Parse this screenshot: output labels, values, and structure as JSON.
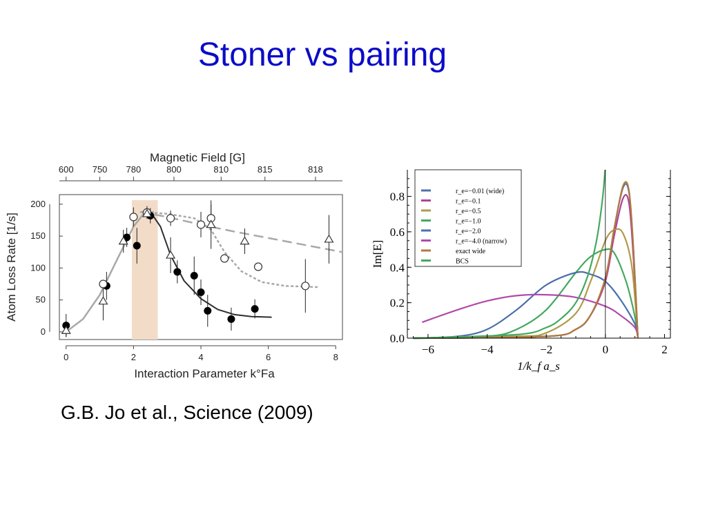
{
  "slide": {
    "title": "Stoner vs pairing",
    "citation": "G.B. Jo et al., Science (2009)"
  },
  "chart_data": [
    {
      "type": "scatter",
      "top_axis_label": "Magnetic Field [G]",
      "top_ticks": [
        {
          "label": "600",
          "x": 0
        },
        {
          "label": "750",
          "x": 1
        },
        {
          "label": "780",
          "x": 2
        },
        {
          "label": "800",
          "x": 3.2
        },
        {
          "label": "810",
          "x": 4.6
        },
        {
          "label": "815",
          "x": 5.9
        },
        {
          "label": "818",
          "x": 7.4
        }
      ],
      "xlabel": "Interaction Parameter k°Fa",
      "ylabel": "Atom Loss Rate [1/s]",
      "xlim": [
        -0.2,
        8.2
      ],
      "ylim": [
        -12,
        215
      ],
      "xticks": [
        0,
        2,
        4,
        6,
        8
      ],
      "yticks": [
        0,
        50,
        100,
        150,
        200
      ],
      "highlight_band": [
        1.95,
        2.72
      ],
      "series": [
        {
          "marker": "filled-circle",
          "points": [
            {
              "x": 0.0,
              "y": 10,
              "err": 18
            },
            {
              "x": 1.2,
              "y": 72,
              "err": 22
            },
            {
              "x": 1.8,
              "y": 148,
              "err": 15
            },
            {
              "x": 2.1,
              "y": 135,
              "err": 28
            },
            {
              "x": 2.5,
              "y": 182,
              "err": 12
            },
            {
              "x": 3.3,
              "y": 94,
              "err": 18
            },
            {
              "x": 3.8,
              "y": 88,
              "err": 30
            },
            {
              "x": 4.0,
              "y": 62,
              "err": 20
            },
            {
              "x": 4.2,
              "y": 33,
              "err": 25
            },
            {
              "x": 4.9,
              "y": 20,
              "err": 18
            },
            {
              "x": 5.6,
              "y": 36,
              "err": 15
            }
          ]
        },
        {
          "marker": "open-circle",
          "points": [
            {
              "x": 1.1,
              "y": 75,
              "err": 0
            },
            {
              "x": 2.0,
              "y": 180,
              "err": 15
            },
            {
              "x": 2.4,
              "y": 187,
              "err": 10
            },
            {
              "x": 3.1,
              "y": 178,
              "err": 12
            },
            {
              "x": 4.0,
              "y": 168,
              "err": 20
            },
            {
              "x": 4.3,
              "y": 178,
              "err": 22
            },
            {
              "x": 4.7,
              "y": 115,
              "err": 0
            },
            {
              "x": 5.7,
              "y": 102,
              "err": 0
            },
            {
              "x": 7.1,
              "y": 72,
              "err": 42
            }
          ]
        },
        {
          "marker": "open-triangle",
          "points": [
            {
              "x": 0.0,
              "y": 2,
              "err": 10
            },
            {
              "x": 1.1,
              "y": 48,
              "err": 30
            },
            {
              "x": 1.7,
              "y": 142,
              "err": 18
            },
            {
              "x": 2.4,
              "y": 185,
              "err": 8
            },
            {
              "x": 3.1,
              "y": 120,
              "err": 28
            },
            {
              "x": 4.3,
              "y": 168,
              "err": 38
            },
            {
              "x": 5.3,
              "y": 142,
              "err": 20
            },
            {
              "x": 7.8,
              "y": 145,
              "err": 38
            }
          ]
        }
      ],
      "curves": [
        {
          "style": "solid-light",
          "color": "#a8a8a8",
          "points": [
            [
              0,
              0
            ],
            [
              0.5,
              20
            ],
            [
              1,
              58
            ],
            [
              1.5,
              112
            ],
            [
              2,
              165
            ],
            [
              2.3,
              185
            ],
            [
              2.6,
              188
            ]
          ]
        },
        {
          "style": "solid-dark",
          "color": "#2e2e2e",
          "points": [
            [
              2.5,
              188
            ],
            [
              2.8,
              165
            ],
            [
              3.1,
              120
            ],
            [
              3.5,
              80
            ],
            [
              4,
              52
            ],
            [
              4.5,
              35
            ],
            [
              5,
              27
            ],
            [
              5.5,
              24
            ],
            [
              6.1,
              23
            ]
          ]
        },
        {
          "style": "dashed-long",
          "color": "#a8a8a8",
          "points": [
            [
              2.2,
              188
            ],
            [
              3,
              180
            ],
            [
              4,
              168
            ],
            [
              5,
              157
            ],
            [
              6,
              147
            ],
            [
              7,
              137
            ],
            [
              8.2,
              125
            ]
          ]
        },
        {
          "style": "dotted",
          "color": "#a8a8a8",
          "points": [
            [
              2.2,
              188
            ],
            [
              3,
              185
            ],
            [
              3.8,
              178
            ],
            [
              4.3,
              160
            ],
            [
              4.7,
              125
            ],
            [
              5.2,
              95
            ],
            [
              5.8,
              78
            ],
            [
              6.5,
              72
            ],
            [
              7.5,
              70
            ]
          ]
        }
      ]
    },
    {
      "type": "line",
      "xlabel": "1/k_f a_s",
      "ylabel": "Im[E]",
      "xlim": [
        -6.7,
        2.2
      ],
      "ylim": [
        0,
        0.95
      ],
      "xticks": [
        -6,
        -4,
        -2,
        0,
        2
      ],
      "yticks": [
        0.0,
        0.2,
        0.4,
        0.6,
        0.8
      ],
      "ytick_labels": [
        "0.0",
        "0.2",
        "0.4",
        "0.6",
        "0.8"
      ],
      "xtick_labels": [
        "−6",
        "−4",
        "−2",
        "0",
        "2"
      ],
      "legend_position": "top-left",
      "series": [
        {
          "name": "r_e=−0.01 (wide)",
          "color": "#4a6fad",
          "points": [
            [
              -6.5,
              0
            ],
            [
              -2,
              0.01
            ],
            [
              -1,
              0.05
            ],
            [
              -0.5,
              0.13
            ],
            [
              0,
              0.33
            ],
            [
              0.3,
              0.62
            ],
            [
              0.6,
              0.85
            ],
            [
              0.8,
              0.82
            ],
            [
              0.95,
              0.5
            ],
            [
              1.1,
              0
            ]
          ]
        },
        {
          "name": "r_e=−0.1",
          "color": "#b0409a",
          "points": [
            [
              -6.5,
              0
            ],
            [
              -2,
              0.01
            ],
            [
              -1,
              0.05
            ],
            [
              -0.5,
              0.13
            ],
            [
              0,
              0.32
            ],
            [
              0.3,
              0.58
            ],
            [
              0.6,
              0.79
            ],
            [
              0.8,
              0.76
            ],
            [
              0.95,
              0.45
            ],
            [
              1.1,
              0
            ]
          ]
        },
        {
          "name": "r_e=−0.5",
          "color": "#b09a4a",
          "points": [
            [
              -6.5,
              0
            ],
            [
              -3,
              0.01
            ],
            [
              -2,
              0.03
            ],
            [
              -1,
              0.14
            ],
            [
              -0.5,
              0.32
            ],
            [
              0,
              0.55
            ],
            [
              0.3,
              0.61
            ],
            [
              0.6,
              0.59
            ],
            [
              0.9,
              0.4
            ],
            [
              1.1,
              0
            ]
          ]
        },
        {
          "name": "r_e=−1.0",
          "color": "#44a860",
          "points": [
            [
              -6.5,
              0
            ],
            [
              -4,
              0.01
            ],
            [
              -3,
              0.05
            ],
            [
              -2,
              0.16
            ],
            [
              -1,
              0.37
            ],
            [
              -0.5,
              0.46
            ],
            [
              0,
              0.5
            ],
            [
              0.3,
              0.48
            ],
            [
              0.7,
              0.32
            ],
            [
              1.0,
              0.12
            ],
            [
              1.1,
              0
            ]
          ]
        },
        {
          "name": "r_e=−2.0",
          "color": "#4a6fad",
          "points": [
            [
              -6.5,
              0
            ],
            [
              -5,
              0.01
            ],
            [
              -4,
              0.05
            ],
            [
              -3,
              0.16
            ],
            [
              -2,
              0.3
            ],
            [
              -1,
              0.37
            ],
            [
              -0.5,
              0.36
            ],
            [
              0,
              0.32
            ],
            [
              0.5,
              0.22
            ],
            [
              1.0,
              0.08
            ],
            [
              1.1,
              0
            ]
          ]
        },
        {
          "name": "r_e=−4.0 (narrow)",
          "color": "#b04aa8",
          "points": [
            [
              -6.2,
              0.09
            ],
            [
              -5,
              0.16
            ],
            [
              -4,
              0.21
            ],
            [
              -3,
              0.24
            ],
            [
              -2,
              0.245
            ],
            [
              -1,
              0.23
            ],
            [
              0,
              0.18
            ],
            [
              0.5,
              0.13
            ],
            [
              1.0,
              0.06
            ],
            [
              1.1,
              0
            ]
          ]
        },
        {
          "name": "exact wide",
          "color": "#b07a3a",
          "points": [
            [
              -6.5,
              0
            ],
            [
              -2,
              0.01
            ],
            [
              -1,
              0.05
            ],
            [
              -0.5,
              0.13
            ],
            [
              0,
              0.34
            ],
            [
              0.3,
              0.62
            ],
            [
              0.6,
              0.86
            ],
            [
              0.8,
              0.83
            ],
            [
              0.95,
              0.5
            ],
            [
              1.1,
              0
            ]
          ]
        },
        {
          "name": "BCS",
          "color": "#44a860",
          "points": [
            [
              -6.5,
              0
            ],
            [
              -3,
              0.02
            ],
            [
              -2,
              0.06
            ],
            [
              -1.5,
              0.11
            ],
            [
              -1,
              0.2
            ],
            [
              -0.6,
              0.35
            ],
            [
              -0.3,
              0.55
            ],
            [
              -0.1,
              0.78
            ],
            [
              0,
              0.97
            ]
          ]
        }
      ]
    }
  ]
}
